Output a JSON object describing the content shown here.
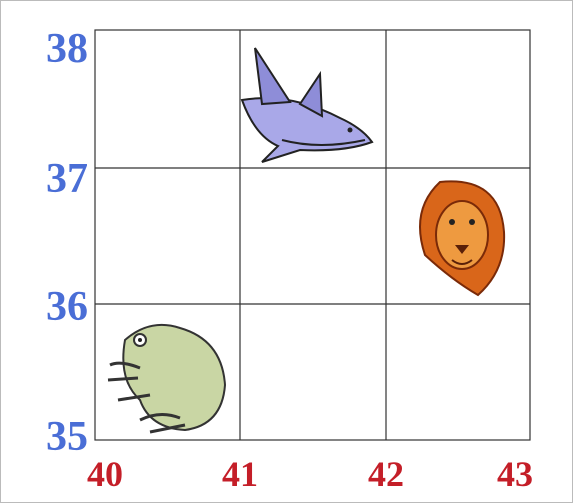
{
  "axes": {
    "x_labels": [
      "40",
      "41",
      "42",
      "43"
    ],
    "y_labels": [
      "38",
      "37",
      "36",
      "35"
    ]
  }
}
